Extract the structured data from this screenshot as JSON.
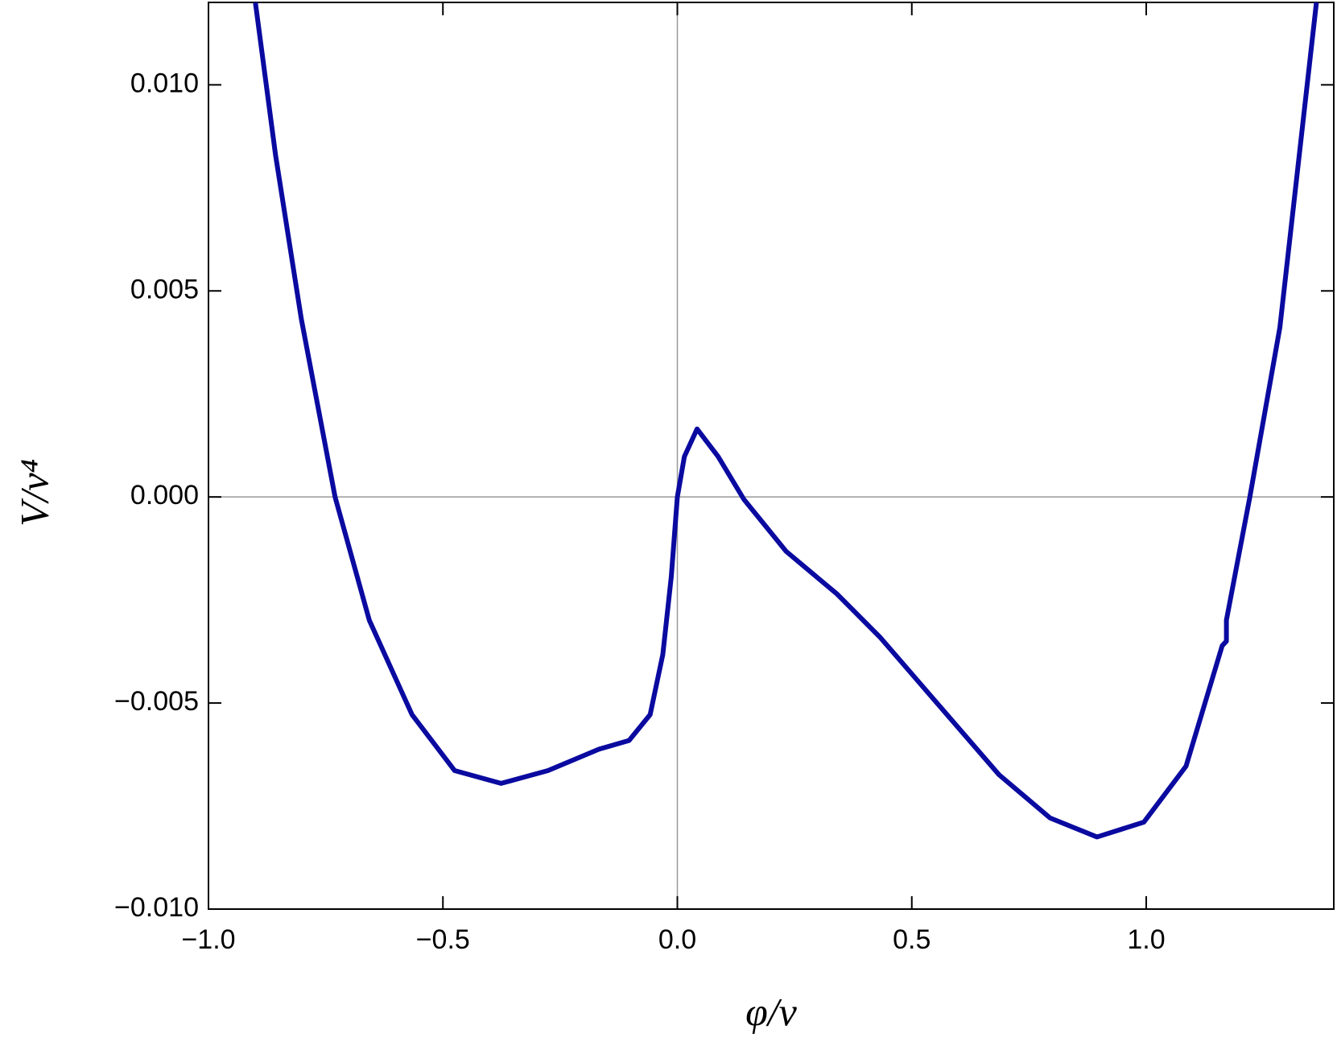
{
  "chart_data": {
    "type": "line",
    "x_label": "φ/v",
    "y_label": "V/v⁴",
    "x": [
      -0.9,
      -0.857,
      -0.802,
      -0.73,
      -0.657,
      -0.566,
      -0.475,
      -0.376,
      -0.276,
      -0.167,
      -0.103,
      -0.058,
      -0.031,
      -0.013,
      0.0,
      0.015,
      0.042,
      0.087,
      0.142,
      0.232,
      0.341,
      0.432,
      0.559,
      0.686,
      0.795,
      0.895,
      0.995,
      1.085,
      1.162,
      1.171,
      1.171,
      1.221,
      1.285,
      1.363
    ],
    "series": [
      {
        "color": "#0a0aa0",
        "values": [
          0.012,
          0.0083,
          0.00432,
          0.0,
          -0.00299,
          -0.00528,
          -0.00664,
          -0.00695,
          -0.00664,
          -0.00612,
          -0.00591,
          -0.00528,
          -0.00382,
          -0.00194,
          0.0,
          0.00098,
          0.00165,
          0.00098,
          -6e-05,
          -0.00132,
          -0.00236,
          -0.0034,
          -0.00507,
          -0.00674,
          -0.00779,
          -0.00825,
          -0.00789,
          -0.00653,
          -0.00361,
          -0.0035,
          -0.00299,
          0.0,
          0.00411,
          0.012
        ]
      }
    ],
    "xlim": [
      -1.0,
      1.4
    ],
    "ylim": [
      -0.01,
      0.012
    ],
    "xticks": [
      {
        "value": -1.0,
        "label": "−1.0"
      },
      {
        "value": -0.5,
        "label": "−0.5"
      },
      {
        "value": 0,
        "label": "0.0"
      },
      {
        "value": 0.5,
        "label": "0.5"
      },
      {
        "value": 1.0,
        "label": "1.0"
      }
    ],
    "yticks": [
      {
        "value": -0.01,
        "label": "−0.010"
      },
      {
        "value": -0.005,
        "label": "−0.005"
      },
      {
        "value": 0,
        "label": "0.000"
      },
      {
        "value": 0.005,
        "label": "0.005"
      },
      {
        "value": 0.01,
        "label": "0.010"
      }
    ]
  }
}
